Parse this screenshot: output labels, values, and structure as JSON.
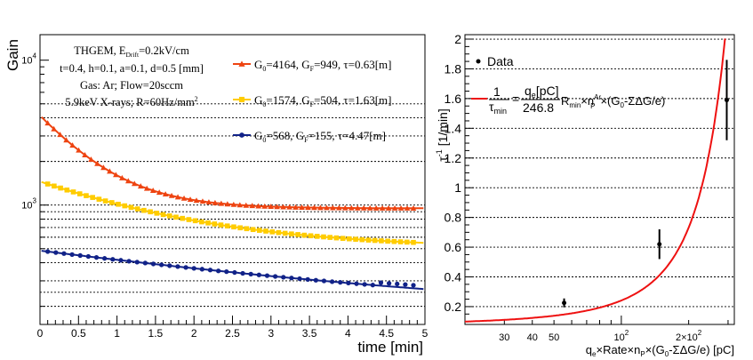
{
  "chart_data": [
    {
      "type": "scatter",
      "panel": "left",
      "ylabel": "Gain",
      "xlabel": "time [min]",
      "x_ticks": [
        "0",
        "0.5",
        "1",
        "1.5",
        "2",
        "2.5",
        "3",
        "3.5",
        "4",
        "4.5",
        "5"
      ],
      "y_ticks": [
        "10^3",
        "10^4"
      ],
      "xlim": [
        0,
        5
      ],
      "ylim": [
        150,
        15000
      ],
      "y_scale": "log",
      "annotation": {
        "line1": "THGEM, E",
        "line1_sub": "Drift",
        "line1_rest": "=0.2kV/cm",
        "line2": "t=0.4, h=0.1, a=0.1, d=0.5 [mm]",
        "line3": "Gas: Ar; Flow=20sccm",
        "line4": "5.9keV X-rays; R=60Hz/mm",
        "line4_sup": "2"
      },
      "series": [
        {
          "name": "G0=4164, GF=949, τ=0.63[m]",
          "label_g": "G",
          "label_0": "0",
          "label_eq1": "=4164, G",
          "label_F": "F",
          "label_eq2": "=949, τ=0.63[m]",
          "color": "#ee4411",
          "marker": "triangle",
          "G0": 4164,
          "GF": 949,
          "tau": 0.63,
          "amp": 3200
        },
        {
          "name": "G0=1574, GF=504, τ=1.63[m]",
          "label_g": "G",
          "label_0": "0",
          "label_eq1": "=1574, G",
          "label_F": "F",
          "label_eq2": "=504, τ=1.63[m]",
          "color": "#ffcc00",
          "marker": "square",
          "G0": 1574,
          "GF": 504,
          "tau": 1.63,
          "amp": 950
        },
        {
          "name": "G0=568, GF=155, τ=4.47[m]",
          "label_g": "G",
          "label_0": "0",
          "label_eq1": "=568, G",
          "label_F": "F",
          "label_eq2": "=155, τ=4.47[m]",
          "color": "#112288",
          "marker": "circle",
          "G0": 568,
          "GF": 155,
          "tau": 4.47,
          "amp": 330
        }
      ],
      "gridlines_y": [
        200,
        250,
        300,
        400,
        500,
        600,
        700,
        800,
        900,
        1000,
        2000,
        3000,
        4000,
        5000
      ]
    },
    {
      "type": "scatter",
      "panel": "right",
      "ylabel": "τ",
      "ylabel_sup": "-1",
      "ylabel_rest": " [1/min]",
      "xlabel_parts": [
        "q",
        "e",
        "×Rate×n",
        "P",
        "×(G",
        "0",
        "-ΣΔG/e) [pC]"
      ],
      "x_ticks": [
        "30",
        "40",
        "50",
        "10^2",
        "2×10^2"
      ],
      "y_ticks": [
        "0.2",
        "0.4",
        "0.6",
        "0.8",
        "1",
        "1.2",
        "1.4",
        "1.6",
        "1.8",
        "2"
      ],
      "xlim": [
        20,
        320
      ],
      "ylim": [
        0.08,
        2.03
      ],
      "x_scale": "log",
      "legend": {
        "data_label": "Data"
      },
      "formula": {
        "lhs_num": "1",
        "lhs_den": "τ",
        "lhs_den_sub": "min",
        "rhs_num": "q",
        "rhs_num_sub": "e",
        "rhs_num_rest": "[pC]",
        "rhs_den": "246.8",
        "tail1": "R",
        "tail1_sub": "min",
        "tail2": "×n",
        "tail2_sup": "Ar",
        "tail2_sub": "P",
        "tail3": "×(G",
        "tail3_sub": "0",
        "tail4": "-ΣΔG/e)"
      },
      "points": [
        {
          "x": 55.5,
          "y": 0.225,
          "err": 0.03
        },
        {
          "x": 148,
          "y": 0.62,
          "err": 0.1
        },
        {
          "x": 296,
          "y": 1.59,
          "err": 0.27
        }
      ],
      "fit": {
        "a": 0.0795,
        "k": 0.0111
      }
    }
  ]
}
